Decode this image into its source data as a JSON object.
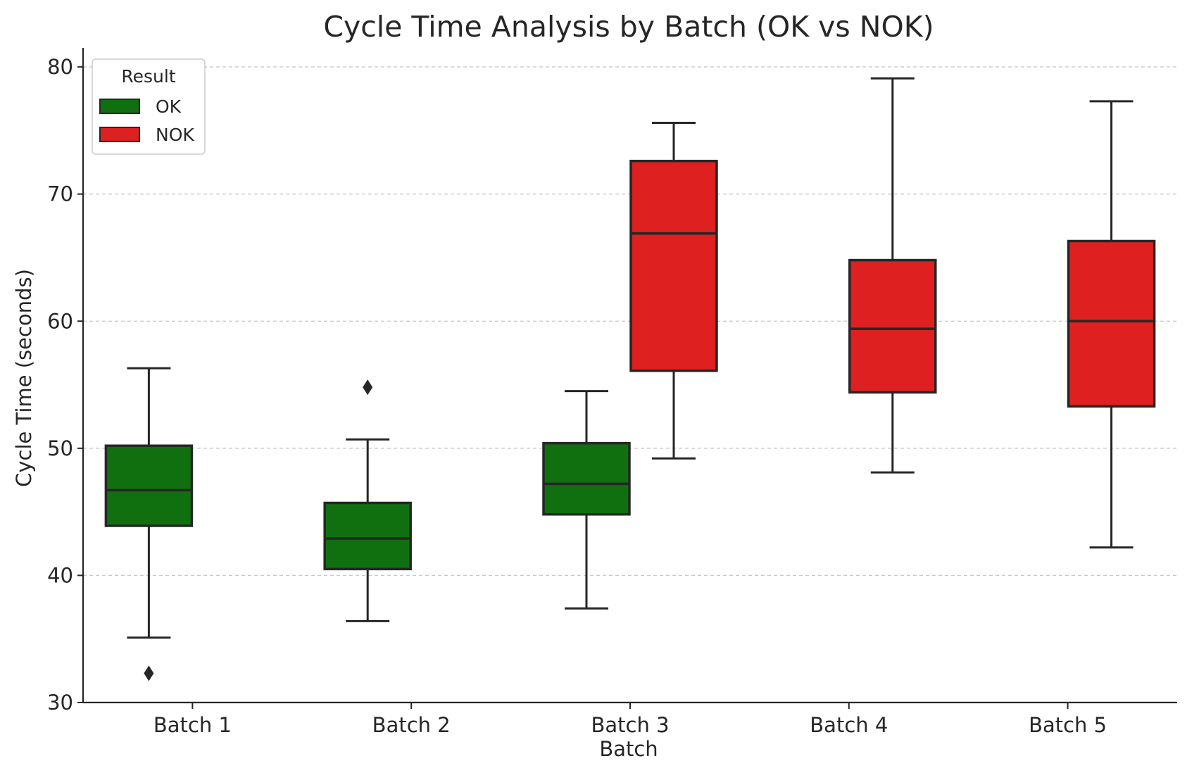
{
  "chart_data": {
    "type": "box",
    "title": "Cycle Time Analysis by Batch (OK vs NOK)",
    "xlabel": "Batch",
    "ylabel": "Cycle Time (seconds)",
    "ylim": [
      30,
      81.5
    ],
    "yticks": [
      30,
      40,
      50,
      60,
      70,
      80
    ],
    "ytick_labels": [
      "30",
      "40",
      "50",
      "60",
      "70",
      "80"
    ],
    "grid": "y dashed",
    "categories": [
      "Batch 1",
      "Batch 2",
      "Batch 3",
      "Batch 4",
      "Batch 5"
    ],
    "legend": {
      "title": "Result",
      "position": "top-left",
      "entries": [
        "OK",
        "NOK"
      ]
    },
    "colors": {
      "OK": "#107010",
      "NOK": "#de2020",
      "edge": "#262626",
      "grid": "#c8c8c8"
    },
    "series": [
      {
        "name": "OK",
        "boxes": [
          {
            "category": "Batch 1",
            "whisker_low": 35.1,
            "q1": 43.9,
            "median": 46.7,
            "q3": 50.2,
            "whisker_high": 56.3,
            "outliers": [
              32.3
            ]
          },
          {
            "category": "Batch 2",
            "whisker_low": 36.4,
            "q1": 40.5,
            "median": 42.9,
            "q3": 45.7,
            "whisker_high": 50.7,
            "outliers": [
              54.8
            ]
          },
          {
            "category": "Batch 3",
            "whisker_low": 37.4,
            "q1": 44.8,
            "median": 47.2,
            "q3": 50.4,
            "whisker_high": 54.5,
            "outliers": []
          }
        ]
      },
      {
        "name": "NOK",
        "boxes": [
          {
            "category": "Batch 3",
            "whisker_low": 49.2,
            "q1": 56.1,
            "median": 66.9,
            "q3": 72.6,
            "whisker_high": 75.6,
            "outliers": []
          },
          {
            "category": "Batch 4",
            "whisker_low": 48.1,
            "q1": 54.4,
            "median": 59.4,
            "q3": 64.8,
            "whisker_high": 79.1,
            "outliers": []
          },
          {
            "category": "Batch 5",
            "whisker_low": 42.2,
            "q1": 53.3,
            "median": 60.0,
            "q3": 66.3,
            "whisker_high": 77.3,
            "outliers": []
          }
        ]
      }
    ]
  }
}
